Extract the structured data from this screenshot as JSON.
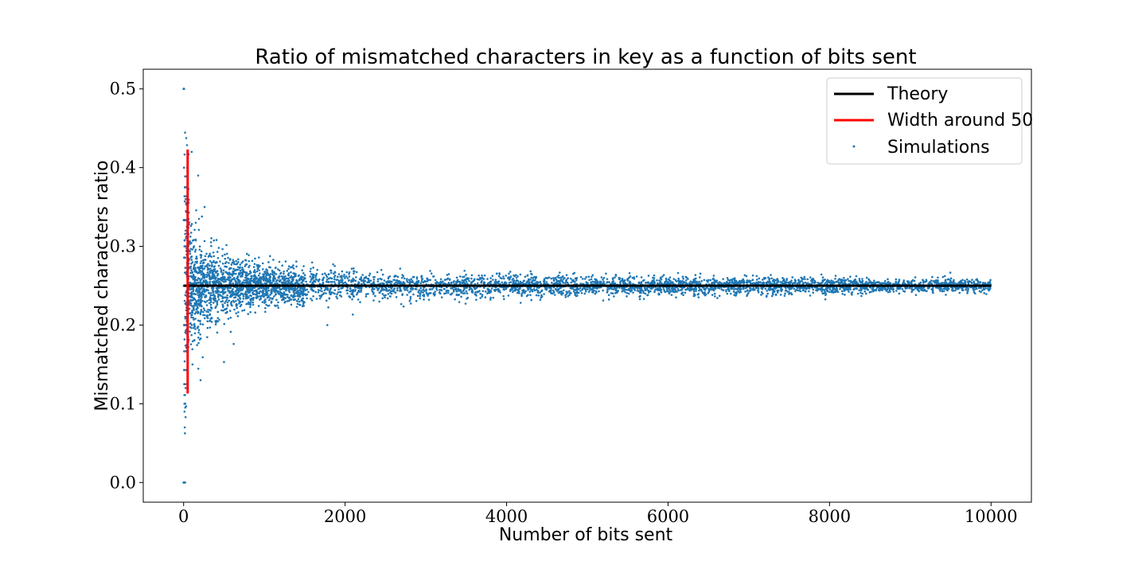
{
  "chart_data": {
    "type": "scatter",
    "title": "Ratio of mismatched characters in key as a function of bits sent",
    "xlabel": "Number of bits sent",
    "ylabel": "Mismatched characters ratio",
    "xlim": [
      -500,
      10500
    ],
    "ylim": [
      -0.025,
      0.525
    ],
    "xticks": [
      0,
      2000,
      4000,
      6000,
      8000,
      10000
    ],
    "yticks": [
      0.0,
      0.1,
      0.2,
      0.3,
      0.4,
      0.5
    ],
    "xtick_labels": [
      "0",
      "2000",
      "4000",
      "6000",
      "8000",
      "10000"
    ],
    "ytick_labels": [
      "0.0",
      "0.1",
      "0.2",
      "0.3",
      "0.4",
      "0.5"
    ],
    "grid": false,
    "legend_position": "top-right",
    "series": [
      {
        "name": "Theory",
        "kind": "line",
        "color": "#000000",
        "x": [
          0,
          10000
        ],
        "y": [
          0.25,
          0.25
        ]
      },
      {
        "name": "Width around 50",
        "kind": "vline",
        "color": "#ff0000",
        "x": 50,
        "ymin": 0.113,
        "ymax": 0.423
      },
      {
        "name": "Simulations",
        "kind": "scatter",
        "color": "#1f77b4",
        "x_range": [
          1,
          10000
        ],
        "n_points": 10000,
        "center": 0.25,
        "spread": "0.25*0.75/n",
        "points": [
          [
            1,
            0.0
          ],
          [
            2,
            0.5
          ],
          [
            2,
            0.0
          ],
          [
            4,
            0.0
          ],
          [
            5,
            0.0
          ],
          [
            8,
            0.125
          ],
          [
            11,
            0.09
          ],
          [
            14,
            0.07
          ],
          [
            16,
            0.0625
          ],
          [
            20,
            0.1
          ],
          [
            24,
            0.083
          ],
          [
            25,
            0.12
          ],
          [
            33,
            0.333
          ],
          [
            40,
            0.375
          ],
          [
            45,
            0.4
          ],
          [
            60,
            0.417
          ],
          [
            100,
            0.42
          ],
          [
            110,
            0.15
          ],
          [
            180,
            0.39
          ],
          [
            210,
            0.13
          ],
          [
            260,
            0.35
          ],
          [
            500,
            0.153
          ],
          [
            620,
            0.176
          ],
          [
            1780,
            0.2
          ]
        ]
      }
    ]
  }
}
